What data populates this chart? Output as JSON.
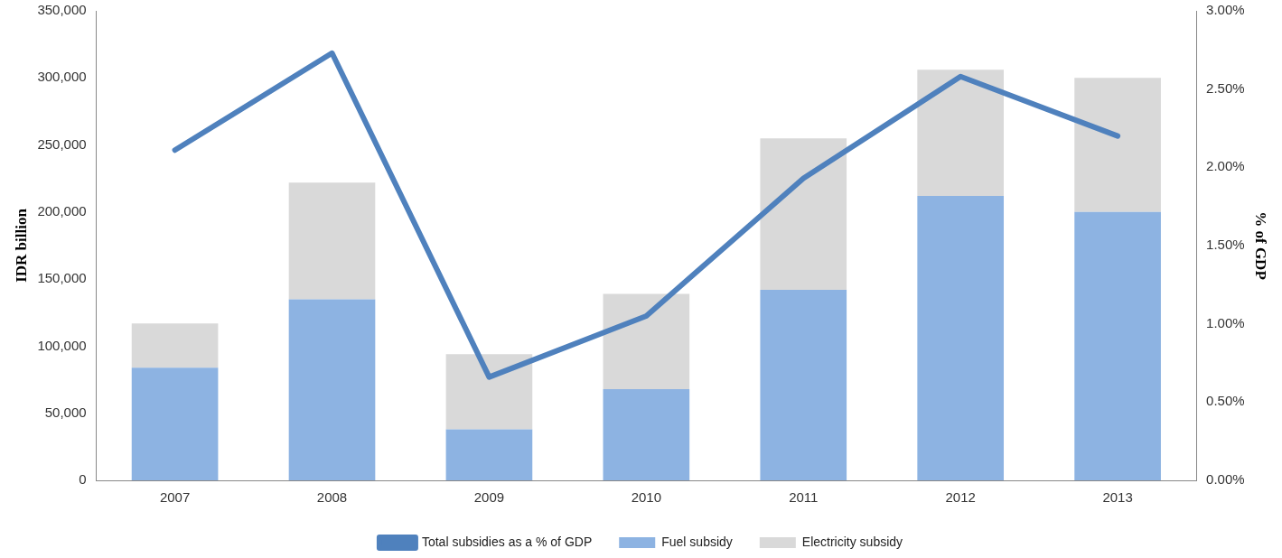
{
  "chart_data": {
    "type": "bar",
    "stacked": true,
    "ylabel": "IDR billion",
    "y2label": "% of GDP",
    "categories": [
      "2007",
      "2008",
      "2009",
      "2010",
      "2011",
      "2012",
      "2013"
    ],
    "series": [
      {
        "name": "Fuel subsidy",
        "color": "#8db3e2",
        "values": [
          84000,
          135000,
          38000,
          68000,
          142000,
          212000,
          200000
        ]
      },
      {
        "name": "Electricity subsidy",
        "color": "#d9d9d9",
        "values": [
          33000,
          87000,
          56000,
          71000,
          113000,
          94000,
          100000
        ]
      },
      {
        "name": "Total subsidies as a % of GDP",
        "type": "line",
        "axis": "y2",
        "marker": "none",
        "line_style": "solid",
        "color": "#4f81bd",
        "values": [
          2.11,
          2.73,
          0.66,
          1.05,
          1.93,
          2.58,
          2.2
        ]
      }
    ],
    "ylim": [
      0,
      350000
    ],
    "yticks": [
      {
        "value": 0,
        "label": "0"
      },
      {
        "value": 50000,
        "label": "50,000"
      },
      {
        "value": 100000,
        "label": "100,000"
      },
      {
        "value": 150000,
        "label": "150,000"
      },
      {
        "value": 200000,
        "label": "200,000"
      },
      {
        "value": 250000,
        "label": "250,000"
      },
      {
        "value": 300000,
        "label": "300,000"
      },
      {
        "value": 350000,
        "label": "350,000"
      }
    ],
    "y2lim": [
      0,
      3
    ],
    "y2ticks": [
      {
        "value": 0,
        "label": "0.00%"
      },
      {
        "value": 0.5,
        "label": "0.50%"
      },
      {
        "value": 1,
        "label": "1.00%"
      },
      {
        "value": 1.5,
        "label": "1.50%"
      },
      {
        "value": 2,
        "label": "2.00%"
      },
      {
        "value": 2.5,
        "label": "2.50%"
      },
      {
        "value": 3,
        "label": "3.00%"
      }
    ],
    "grid": false,
    "legend": "bottom"
  }
}
